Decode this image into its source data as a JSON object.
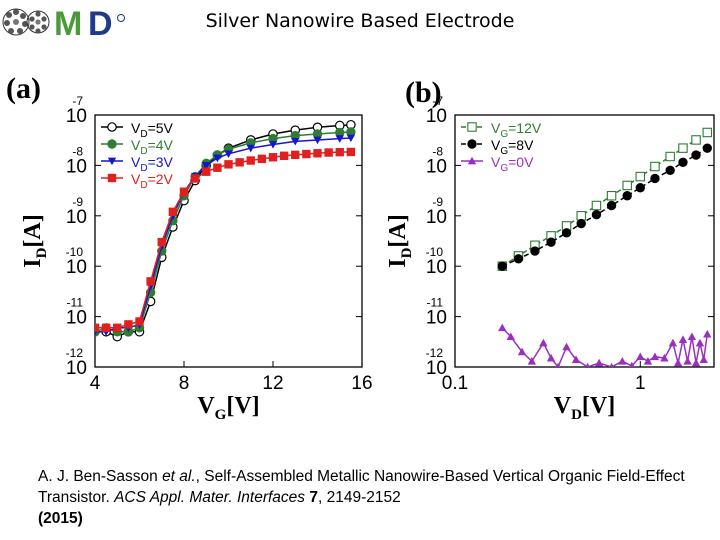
{
  "slide": {
    "title": "Silver Nanowire Based Electrode"
  },
  "logo": {
    "icon": "omd-logo-icon",
    "letters": "MD",
    "colors": [
      "#4a9a3a",
      "#1f3a8a"
    ]
  },
  "panels": [
    {
      "label": "(a)"
    },
    {
      "label": "(b)"
    }
  ],
  "caption": {
    "authors": "A. J. Ben-Sasson ",
    "etal": "et al.",
    "title_part": ", Self-Assembled Metallic Nanowire-Based Vertical Organic Field-Effect Transistor. ",
    "journal": "ACS Appl. Mater. Interfaces",
    "volume": " 7",
    "pages": ", 2149-2152",
    "year": "(2015)"
  },
  "chart_data": [
    {
      "type": "line",
      "panel": "(a)",
      "xlabel": {
        "main": "V",
        "sub": "G",
        "unit": "[V]"
      },
      "ylabel": {
        "main": "I",
        "sub": "D",
        "unit": "[A]"
      },
      "xscale": "linear",
      "yscale": "log",
      "xlim": [
        4,
        16
      ],
      "ylim": [
        1e-12,
        1e-07
      ],
      "xticks": [
        4,
        8,
        12,
        16
      ],
      "yticks": [
        {
          "base": "10",
          "exp": "-12"
        },
        {
          "base": "10",
          "exp": "-11"
        },
        {
          "base": "10",
          "exp": "-10"
        },
        {
          "base": "10",
          "exp": "-9"
        },
        {
          "base": "10",
          "exp": "-8"
        },
        {
          "base": "10",
          "exp": "-7"
        }
      ],
      "legend_position": "top-left",
      "series": [
        {
          "legend": {
            "pre": "V",
            "sub": "D",
            "post": "=5V"
          },
          "color": "#000000",
          "marker": "open-circle",
          "x": [
            4.0,
            4.5,
            5.0,
            5.5,
            6.0,
            6.5,
            7.0,
            7.5,
            8.0,
            8.5,
            9.0,
            9.5,
            10.0,
            11.0,
            12.0,
            13.0,
            14.0,
            15.0,
            15.5
          ],
          "y": [
            5e-12,
            5e-12,
            4e-12,
            5e-12,
            5e-12,
            2e-11,
            1.5e-10,
            6e-10,
            2e-09,
            5e-09,
            1e-08,
            1.6e-08,
            2.2e-08,
            3.2e-08,
            4.2e-08,
            5e-08,
            5.7e-08,
            6.2e-08,
            6.4e-08
          ]
        },
        {
          "legend": {
            "pre": "V",
            "sub": "D",
            "post": "=4V"
          },
          "color": "#2e7d32",
          "marker": "filled-circle",
          "x": [
            4.0,
            4.5,
            5.0,
            5.5,
            6.0,
            6.5,
            7.0,
            7.5,
            8.0,
            8.5,
            9.0,
            9.5,
            10.0,
            11.0,
            12.0,
            13.0,
            14.0,
            15.0,
            15.5
          ],
          "y": [
            5e-12,
            6e-12,
            5e-12,
            5e-12,
            6e-12,
            3e-11,
            2e-10,
            8e-10,
            2.5e-09,
            6e-09,
            1.1e-08,
            1.6e-08,
            2.1e-08,
            2.8e-08,
            3.4e-08,
            3.9e-08,
            4.2e-08,
            4.5e-08,
            4.6e-08
          ]
        },
        {
          "legend": {
            "pre": "V",
            "sub": "D",
            "post": "=3V"
          },
          "color": "#1515d0",
          "marker": "filled-triangle-down",
          "x": [
            4.0,
            4.5,
            5.0,
            5.5,
            6.0,
            6.5,
            7.0,
            7.5,
            8.0,
            8.5,
            9.0,
            9.5,
            10.0,
            11.0,
            12.0,
            13.0,
            14.0,
            15.0,
            15.5
          ],
          "y": [
            5e-12,
            5e-12,
            6e-12,
            6e-12,
            7e-12,
            4e-11,
            2.5e-10,
            1e-09,
            3e-09,
            6e-09,
            1e-08,
            1.4e-08,
            1.7e-08,
            2.2e-08,
            2.6e-08,
            3e-08,
            3.2e-08,
            3.4e-08,
            3.5e-08
          ]
        },
        {
          "legend": {
            "pre": "V",
            "sub": "D",
            "post": "=2V"
          },
          "color": "#e02020",
          "marker": "filled-square",
          "x": [
            4.0,
            4.5,
            5.0,
            5.5,
            6.0,
            6.5,
            7.0,
            7.5,
            8.0,
            8.5,
            9.0,
            9.5,
            10.0,
            10.5,
            11.0,
            11.5,
            12.0,
            12.5,
            13.0,
            13.5,
            14.0,
            14.5,
            15.0,
            15.5
          ],
          "y": [
            6e-12,
            6e-12,
            6e-12,
            7e-12,
            8e-12,
            5e-11,
            3e-10,
            1.2e-09,
            3e-09,
            5.5e-09,
            7.5e-09,
            9e-09,
            1.05e-08,
            1.15e-08,
            1.25e-08,
            1.35e-08,
            1.45e-08,
            1.55e-08,
            1.62e-08,
            1.68e-08,
            1.74e-08,
            1.8e-08,
            1.83e-08,
            1.85e-08
          ]
        }
      ]
    },
    {
      "type": "line",
      "panel": "(b)",
      "xlabel": {
        "main": "V",
        "sub": "D",
        "unit": "[V]"
      },
      "ylabel": {
        "main": "I",
        "sub": "D",
        "unit": "[A]"
      },
      "xscale": "log",
      "yscale": "log",
      "xlim": [
        0.1,
        2.5
      ],
      "ylim": [
        1e-12,
        1e-07
      ],
      "xticks": [
        0.1,
        1
      ],
      "yticks": [
        {
          "base": "10",
          "exp": "-12"
        },
        {
          "base": "10",
          "exp": "-11"
        },
        {
          "base": "10",
          "exp": "-10"
        },
        {
          "base": "10",
          "exp": "-9"
        },
        {
          "base": "10",
          "exp": "-8"
        },
        {
          "base": "10",
          "exp": "-7"
        }
      ],
      "legend_position": "top-left",
      "series": [
        {
          "legend": {
            "pre": "V",
            "sub": "G",
            "post": "=12V"
          },
          "color": "#2e7d32",
          "marker": "open-square",
          "dashed": true,
          "x": [
            0.18,
            0.22,
            0.27,
            0.33,
            0.4,
            0.48,
            0.58,
            0.7,
            0.85,
            1.0,
            1.2,
            1.45,
            1.7,
            2.0,
            2.3
          ],
          "y": [
            1e-10,
            1.6e-10,
            2.6e-10,
            4e-10,
            6.3e-10,
            1e-09,
            1.6e-09,
            2.5e-09,
            4e-09,
            6e-09,
            9.5e-09,
            1.5e-08,
            2.2e-08,
            3.2e-08,
            4.5e-08
          ]
        },
        {
          "legend": {
            "pre": "V",
            "sub": "G",
            "post": "=8V"
          },
          "color": "#000000",
          "marker": "filled-circle",
          "dashed": true,
          "x": [
            0.18,
            0.22,
            0.27,
            0.33,
            0.4,
            0.48,
            0.58,
            0.7,
            0.85,
            1.0,
            1.2,
            1.45,
            1.7,
            2.0,
            2.3
          ],
          "y": [
            1e-10,
            1.4e-10,
            2e-10,
            3e-10,
            4.6e-10,
            7e-10,
            1.05e-09,
            1.6e-09,
            2.5e-09,
            3.6e-09,
            5.5e-09,
            8e-09,
            1.15e-08,
            1.6e-08,
            2.2e-08
          ]
        },
        {
          "legend": {
            "pre": "V",
            "sub": "G",
            "post": "=0V"
          },
          "color": "#9a2fc0",
          "marker": "filled-triangle",
          "dashed": false,
          "x": [
            0.18,
            0.2,
            0.23,
            0.26,
            0.3,
            0.33,
            0.36,
            0.4,
            0.45,
            0.52,
            0.6,
            0.7,
            0.8,
            0.9,
            1.0,
            1.1,
            1.2,
            1.35,
            1.5,
            1.6,
            1.7,
            1.8,
            1.9,
            2.0,
            2.1,
            2.2,
            2.3
          ],
          "y": [
            6e-12,
            4e-12,
            2e-12,
            1.3e-12,
            3e-12,
            1.5e-12,
            1e-12,
            2.5e-12,
            1.4e-12,
            1e-12,
            1.2e-12,
            1e-12,
            1.3e-12,
            1.05e-12,
            1.6e-12,
            1.3e-12,
            1.6e-12,
            1.5e-12,
            3e-12,
            1.2e-12,
            3.5e-12,
            1.3e-12,
            4e-12,
            1.2e-12,
            3e-12,
            1.4e-12,
            4.5e-12
          ]
        }
      ]
    }
  ]
}
